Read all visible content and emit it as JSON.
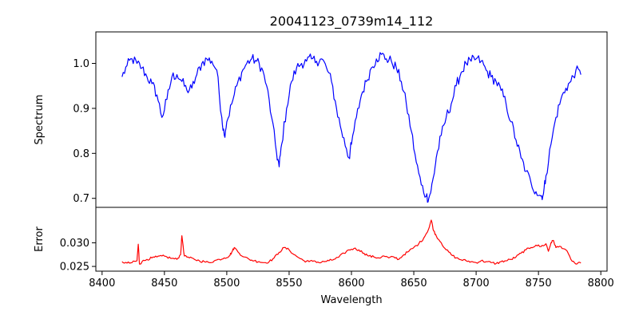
{
  "chart_data": [
    {
      "type": "line",
      "title": "20041123_0739m14_112",
      "xlabel": "",
      "ylabel": "Spectrum",
      "xlim": [
        8395,
        8805
      ],
      "ylim": [
        0.68,
        1.07
      ],
      "yticks": [
        0.7,
        0.8,
        0.9,
        1.0
      ],
      "ytick_labels": [
        "0.7",
        "0.8",
        "0.9",
        "1.0"
      ],
      "grid": false,
      "series": [
        {
          "color": "#0000ff",
          "x": [
            8416,
            8420,
            8424,
            8428,
            8432,
            8436,
            8440,
            8444,
            8448,
            8452,
            8456,
            8460,
            8464,
            8468,
            8472,
            8476,
            8480,
            8484,
            8488,
            8492,
            8496,
            8498,
            8500,
            8504,
            8508,
            8512,
            8516,
            8520,
            8524,
            8528,
            8532,
            8536,
            8540,
            8542,
            8544,
            8548,
            8552,
            8556,
            8560,
            8564,
            8568,
            8572,
            8576,
            8580,
            8584,
            8588,
            8592,
            8596,
            8598,
            8600,
            8604,
            8608,
            8612,
            8616,
            8620,
            8624,
            8628,
            8632,
            8636,
            8640,
            8644,
            8648,
            8652,
            8656,
            8660,
            8662,
            8664,
            8666,
            8668,
            8672,
            8676,
            8680,
            8684,
            8688,
            8692,
            8696,
            8700,
            8704,
            8708,
            8712,
            8716,
            8720,
            8724,
            8728,
            8732,
            8736,
            8740,
            8744,
            8748,
            8752,
            8754,
            8756,
            8760,
            8764,
            8768,
            8772,
            8776,
            8780,
            8784
          ],
          "y": [
            0.97,
            0.995,
            1.01,
            1.0,
            0.99,
            0.97,
            0.955,
            0.93,
            0.88,
            0.92,
            0.97,
            0.975,
            0.96,
            0.94,
            0.945,
            0.975,
            1.0,
            1.01,
            1.005,
            0.985,
            0.88,
            0.84,
            0.87,
            0.91,
            0.95,
            0.98,
            1.0,
            1.01,
            1.005,
            0.99,
            0.95,
            0.88,
            0.8,
            0.77,
            0.82,
            0.9,
            0.96,
            0.99,
            1.0,
            1.005,
            1.01,
            1.005,
            1.01,
            0.99,
            0.96,
            0.9,
            0.85,
            0.81,
            0.79,
            0.82,
            0.88,
            0.93,
            0.96,
            0.99,
            1.01,
            1.02,
            1.01,
            1.005,
            0.99,
            0.96,
            0.91,
            0.85,
            0.78,
            0.73,
            0.705,
            0.7,
            0.72,
            0.75,
            0.79,
            0.84,
            0.88,
            0.91,
            0.95,
            0.98,
            1.0,
            1.005,
            1.01,
            1.005,
            0.985,
            0.97,
            0.96,
            0.94,
            0.91,
            0.87,
            0.83,
            0.79,
            0.76,
            0.735,
            0.715,
            0.705,
            0.71,
            0.75,
            0.82,
            0.88,
            0.92,
            0.945,
            0.96,
            0.985,
            0.975
          ]
        }
      ]
    },
    {
      "type": "line",
      "title": "",
      "xlabel": "Wavelength",
      "ylabel": "Error",
      "xlim": [
        8395,
        8805
      ],
      "ylim": [
        0.024,
        0.0375
      ],
      "yticks": [
        0.025,
        0.03
      ],
      "ytick_labels": [
        "0.025",
        "0.030"
      ],
      "xticks": [
        8400,
        8450,
        8500,
        8550,
        8600,
        8650,
        8700,
        8750,
        8800
      ],
      "xtick_labels": [
        "8400",
        "8450",
        "8500",
        "8550",
        "8600",
        "8650",
        "8700",
        "8750",
        "8800"
      ],
      "grid": false,
      "series": [
        {
          "color": "#ff0000",
          "x": [
            8416,
            8420,
            8424,
            8428,
            8429,
            8430,
            8432,
            8436,
            8440,
            8444,
            8448,
            8452,
            8456,
            8460,
            8463,
            8464,
            8466,
            8470,
            8474,
            8478,
            8482,
            8486,
            8490,
            8494,
            8498,
            8502,
            8504,
            8506,
            8510,
            8514,
            8518,
            8522,
            8526,
            8530,
            8534,
            8538,
            8542,
            8546,
            8550,
            8554,
            8558,
            8562,
            8566,
            8570,
            8574,
            8578,
            8582,
            8586,
            8590,
            8594,
            8598,
            8602,
            8606,
            8610,
            8614,
            8618,
            8622,
            8626,
            8630,
            8634,
            8638,
            8642,
            8646,
            8650,
            8654,
            8658,
            8662,
            8664,
            8666,
            8668,
            8672,
            8676,
            8680,
            8684,
            8688,
            8692,
            8696,
            8700,
            8704,
            8708,
            8712,
            8716,
            8720,
            8724,
            8728,
            8732,
            8736,
            8740,
            8744,
            8748,
            8752,
            8756,
            8758,
            8760,
            8762,
            8764,
            8768,
            8772,
            8776,
            8780,
            8784
          ],
          "y": [
            0.026,
            0.0257,
            0.0258,
            0.0262,
            0.0297,
            0.0255,
            0.026,
            0.0265,
            0.0268,
            0.027,
            0.0272,
            0.027,
            0.0267,
            0.0265,
            0.0275,
            0.0315,
            0.0272,
            0.0268,
            0.0265,
            0.0262,
            0.026,
            0.0258,
            0.0262,
            0.0265,
            0.0268,
            0.0272,
            0.028,
            0.029,
            0.0278,
            0.027,
            0.0265,
            0.0262,
            0.026,
            0.0258,
            0.026,
            0.0268,
            0.028,
            0.029,
            0.0285,
            0.0275,
            0.0268,
            0.0262,
            0.026,
            0.0262,
            0.0258,
            0.026,
            0.0262,
            0.0265,
            0.027,
            0.0278,
            0.0285,
            0.0288,
            0.0285,
            0.0278,
            0.0272,
            0.027,
            0.0268,
            0.0272,
            0.0268,
            0.027,
            0.0265,
            0.0275,
            0.0282,
            0.029,
            0.0298,
            0.031,
            0.033,
            0.0348,
            0.0325,
            0.0315,
            0.03,
            0.0285,
            0.0275,
            0.0268,
            0.0264,
            0.0262,
            0.026,
            0.0258,
            0.0262,
            0.026,
            0.0258,
            0.0256,
            0.026,
            0.0262,
            0.0265,
            0.027,
            0.0278,
            0.0285,
            0.029,
            0.0295,
            0.0292,
            0.0298,
            0.0282,
            0.03,
            0.0305,
            0.029,
            0.0292,
            0.0285,
            0.0265,
            0.0255,
            0.0257
          ]
        }
      ]
    }
  ]
}
